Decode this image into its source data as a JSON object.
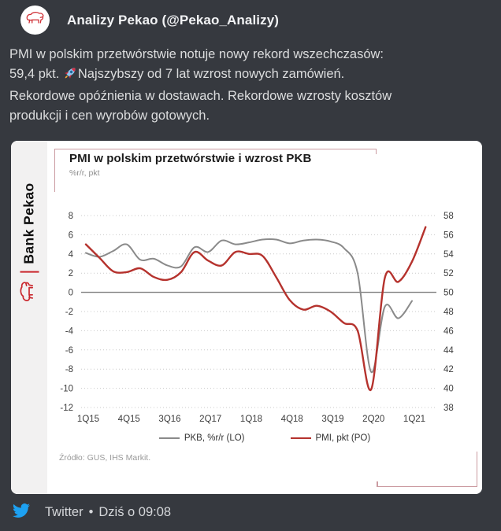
{
  "theme": {
    "background": "#36393f",
    "body_text": "#dcddde",
    "card_background": "#ffffff",
    "pekao_red": "#c9252b",
    "brand_pink_accent": "#cb9ba1",
    "pmi_line_red": "#b5322d",
    "pkb_line_gray": "#8a8a8a",
    "twitter_blue": "#1da1f2"
  },
  "header": {
    "name": "Analizy Pekao (@Pekao_Analizy)"
  },
  "tweet": {
    "line1": "PMI w polskim przetwórstwie notuje nowy rekord wszechczasów:",
    "line2_before_rocket": "59,4 pkt. ",
    "line2_after_rocket": "Najszybszy od 7 lat wzrost nowych zamówień.",
    "line3": "Rekordowe opóźnienia w dostawach. Rekordowe wzrosty kosztów",
    "line4": "produkcji i cen wyrobów gotowych."
  },
  "chart_card": {
    "brand": "Bank Pekao",
    "title": "PMI w polskim przetwórstwie i wzrost PKB",
    "subtitle": "%r/r, pkt",
    "source": "Źródło: GUS, IHS Markit.",
    "legend": [
      {
        "label": "PKB, %r/r (LO)",
        "color": "#8a8a8a"
      },
      {
        "label": "PMI, pkt (PO)",
        "color": "#b5322d"
      }
    ]
  },
  "chart_data": {
    "type": "line",
    "title": "PMI w polskim przetwórstwie i wzrost PKB",
    "units": "%r/r, pkt",
    "grid": "dotted horizontal",
    "legend_position": "bottom",
    "left_axis": {
      "label": "PKB, %r/r",
      "min": -12,
      "max": 8,
      "step": 2
    },
    "right_axis": {
      "label": "PMI, pkt",
      "min": 38,
      "max": 58,
      "step": 2
    },
    "x_ticks": [
      {
        "label": "1Q15",
        "q": 0
      },
      {
        "label": "4Q15",
        "q": 3
      },
      {
        "label": "3Q16",
        "q": 6
      },
      {
        "label": "2Q17",
        "q": 9
      },
      {
        "label": "1Q18",
        "q": 12
      },
      {
        "label": "4Q18",
        "q": 15
      },
      {
        "label": "3Q19",
        "q": 18
      },
      {
        "label": "2Q20",
        "q": 21
      },
      {
        "label": "1Q21",
        "q": 24
      }
    ],
    "x_unit": "quarter index from 1Q15",
    "series": [
      {
        "name": "PKB, %r/r (LO)",
        "axis": "left",
        "color": "#8a8a8a",
        "values": [
          4.1,
          3.7,
          4.3,
          5.0,
          3.4,
          3.5,
          2.8,
          2.7,
          4.7,
          4.2,
          5.4,
          5.0,
          5.2,
          5.5,
          5.5,
          5.1,
          5.4,
          5.5,
          5.3,
          4.6,
          2.0,
          -8.3,
          -1.5,
          -2.7,
          -0.9
        ]
      },
      {
        "name": "PMI, pkt (PO)",
        "axis": "right",
        "color": "#b5322d",
        "values": [
          55.0,
          53.6,
          52.2,
          52.1,
          52.5,
          51.6,
          51.3,
          52.1,
          54.2,
          53.3,
          52.8,
          54.2,
          54.0,
          53.8,
          51.6,
          49.2,
          48.2,
          48.6,
          48.0,
          46.8,
          46.0,
          39.9,
          51.5,
          51.1,
          53.2,
          56.8
        ]
      }
    ]
  },
  "footer": {
    "source": "Twitter",
    "separator": "•",
    "timestamp": "Dziś o 09:08"
  }
}
